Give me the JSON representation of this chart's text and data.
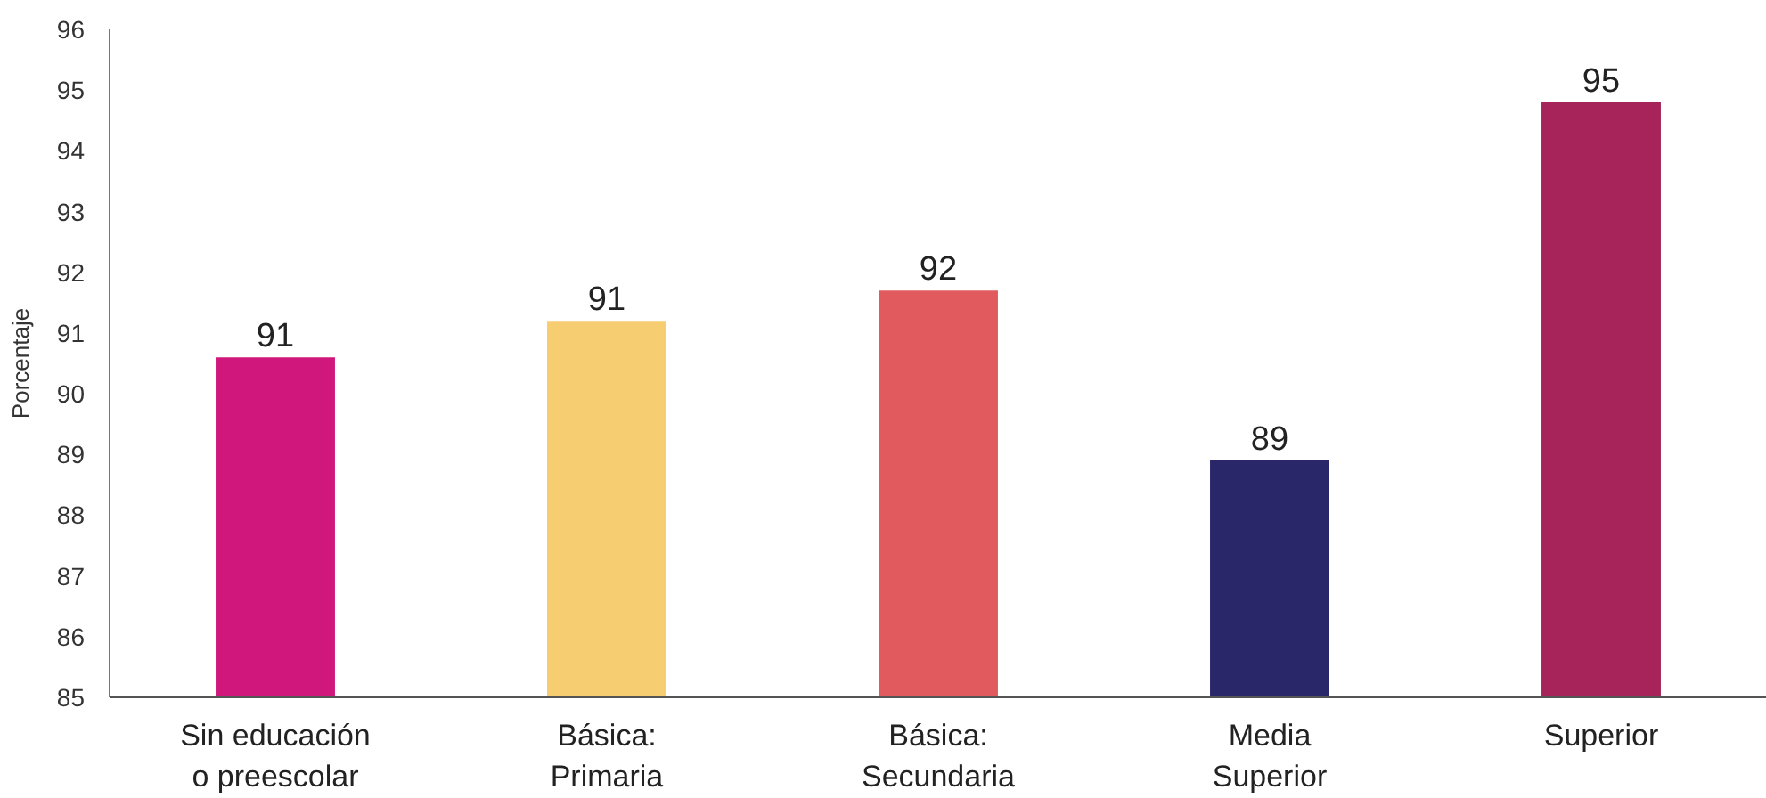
{
  "chart_data": {
    "type": "bar",
    "ylabel": "Porcentaje",
    "categories": [
      "Sin educación o preescolar",
      "Básica: Primaria",
      "Básica: Secundaria",
      "Media Superior",
      "Superior"
    ],
    "values": [
      90.6,
      91.2,
      91.7,
      88.9,
      94.8
    ],
    "colors": [
      "#d0177b",
      "#f7cd72",
      "#e05a5e",
      "#29266a",
      "#a6245a"
    ],
    "value_labels": [
      "91",
      "91",
      "92",
      "89",
      "95"
    ],
    "ylim": [
      85,
      96
    ],
    "yticks": [
      85,
      86,
      87,
      88,
      89,
      90,
      91,
      92,
      93,
      94,
      95,
      96
    ],
    "grid": false
  }
}
